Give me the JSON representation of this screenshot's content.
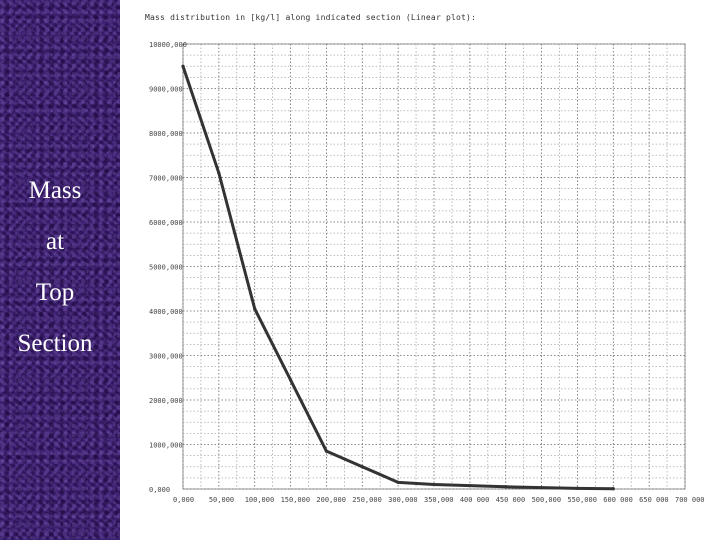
{
  "side_panel": {
    "labels": [
      "Mass",
      "at",
      "Top",
      "Section"
    ]
  },
  "chart_data": {
    "type": "line",
    "title": "Mass distribution in [kg/l] along indicated section (Linear plot):",
    "xlabel": "",
    "ylabel": "",
    "xlim": [
      0,
      700000
    ],
    "ylim": [
      0,
      10000000
    ],
    "grid": true,
    "x_ticks": [
      "0,000",
      "50,000",
      "100,000",
      "150,000",
      "200,000",
      "250,000",
      "300,000",
      "350,000",
      "400 000",
      "450 000",
      "500,000",
      "550,000",
      "600 000",
      "650 000",
      "700 000"
    ],
    "y_ticks": [
      "0,000",
      "1000,000",
      "2000,000",
      "3000,000",
      "4000,000",
      "5000,000",
      "6000,000",
      "7000,000",
      "8000,000",
      "9000,000",
      "10000,000"
    ],
    "series": [
      {
        "color": "#333333",
        "x": [
          0,
          50000,
          100000,
          150000,
          200000,
          250000,
          300000,
          350000,
          400000,
          450000,
          500000,
          550000,
          600000
        ],
        "y": [
          9500000,
          7100000,
          4050000,
          2450000,
          850000,
          500000,
          150000,
          100000,
          75000,
          50000,
          30000,
          15000,
          5000
        ]
      }
    ]
  }
}
